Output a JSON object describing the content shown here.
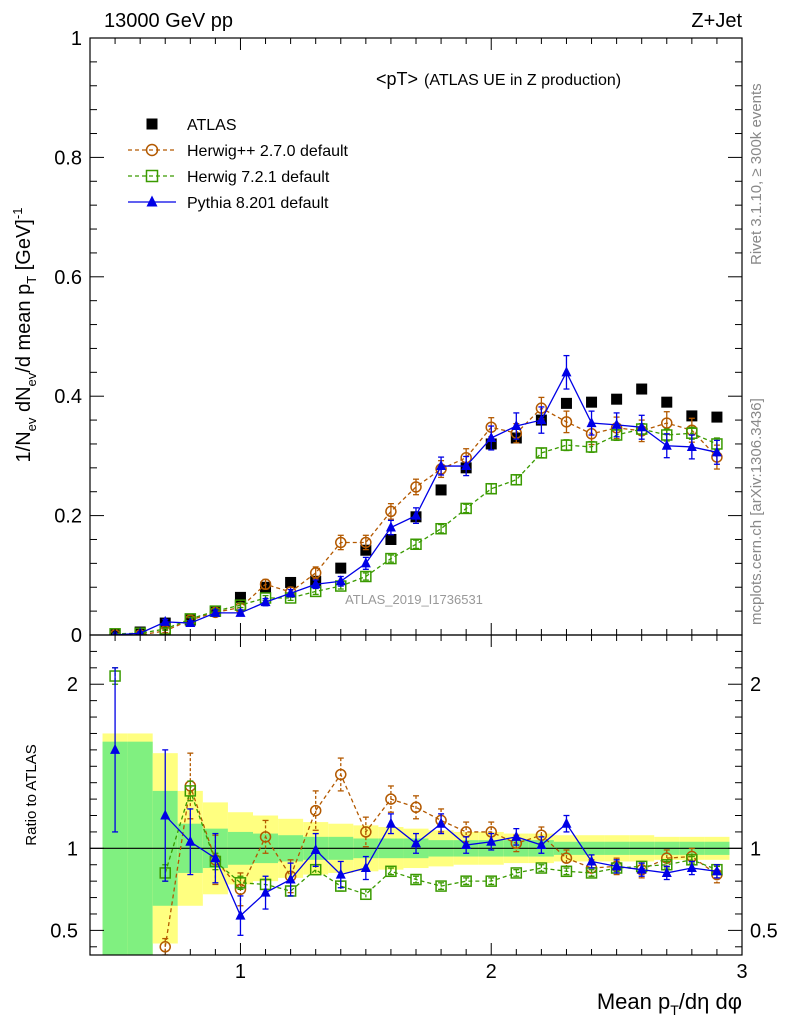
{
  "header": {
    "left": "13000 GeV pp",
    "right": "Z+Jet"
  },
  "side_labels": {
    "rivet": "Rivet 3.1.10, ≥ 300k events",
    "mcplots": "mcplots.cern.ch [arXiv:1306.3436]"
  },
  "chart_data": {
    "type": "scatter",
    "title": "<pT> (ATLAS UE in Z production)",
    "title_main": "<pT>",
    "title_sub": "(ATLAS UE in Z production)",
    "watermark": "ATLAS_2019_I1736531",
    "xlabel": "Mean p_T/dη dφ",
    "ylabel_main": "1/N_ev dN_ev/d mean p_T [GeV]^-1",
    "ylabel_ratio": "Ratio to ATLAS",
    "xlim": [
      0.4,
      3.0
    ],
    "ylim_main": [
      0,
      1
    ],
    "ylim_ratio": [
      0.35,
      2.3
    ],
    "x_ticks": [
      "1",
      "2",
      "3"
    ],
    "y_ticks_main": [
      "0",
      "0.2",
      "0.4",
      "0.6",
      "0.8",
      "1"
    ],
    "y_ticks_ratio": [
      "0.5",
      "1",
      "2"
    ],
    "legend_position": "top-left",
    "x": [
      0.5,
      0.6,
      0.7,
      0.8,
      0.9,
      1.0,
      1.1,
      1.2,
      1.3,
      1.4,
      1.5,
      1.6,
      1.7,
      1.8,
      1.9,
      2.0,
      2.1,
      2.2,
      2.3,
      2.4,
      2.5,
      2.6,
      2.7,
      2.8,
      2.9
    ],
    "series": [
      {
        "name": "ATLAS",
        "color": "#000000",
        "marker": "square-filled",
        "values": [
          0.0,
          0.005,
          0.02,
          0.025,
          0.04,
          0.063,
          0.08,
          0.088,
          0.09,
          0.112,
          0.142,
          0.16,
          0.198,
          0.243,
          0.28,
          0.32,
          0.33,
          0.36,
          0.388,
          0.39,
          0.395,
          0.412,
          0.39,
          0.367,
          0.365
        ],
        "ratio": [],
        "ratio_err": []
      },
      {
        "name": "Herwig++ 2.7.0 default",
        "color": "#b35900",
        "marker": "circle-open",
        "dashed": true,
        "values": [
          0.0,
          0.0,
          0.007,
          0.025,
          0.038,
          0.046,
          0.085,
          0.072,
          0.104,
          0.155,
          0.155,
          0.207,
          0.248,
          0.278,
          0.297,
          0.348,
          0.338,
          0.38,
          0.357,
          0.337,
          0.347,
          0.342,
          0.355,
          0.343,
          0.298
        ],
        "errors": [
          0,
          0,
          0.003,
          0.004,
          0.005,
          0.006,
          0.008,
          0.008,
          0.01,
          0.012,
          0.012,
          0.013,
          0.013,
          0.014,
          0.015,
          0.016,
          0.016,
          0.018,
          0.018,
          0.018,
          0.018,
          0.018,
          0.019,
          0.02,
          0.02
        ],
        "ratio": [
          null,
          null,
          0.4,
          1.38,
          0.93,
          0.75,
          1.07,
          0.83,
          1.23,
          1.45,
          1.1,
          1.3,
          1.25,
          1.17,
          1.1,
          1.1,
          1.03,
          1.08,
          0.94,
          0.88,
          0.89,
          0.87,
          0.94,
          0.95,
          0.84
        ],
        "ratio_err": [
          0,
          0,
          0.05,
          0.2,
          0.15,
          0.1,
          0.1,
          0.1,
          0.12,
          0.1,
          0.09,
          0.08,
          0.07,
          0.07,
          0.06,
          0.06,
          0.05,
          0.05,
          0.05,
          0.05,
          0.05,
          0.05,
          0.05,
          0.05,
          0.05
        ]
      },
      {
        "name": "Herwig 7.2.1 default",
        "color": "#3a9a00",
        "marker": "square-open",
        "dashed": true,
        "values": [
          0.002,
          0.003,
          0.01,
          0.027,
          0.04,
          0.05,
          0.062,
          0.062,
          0.073,
          0.082,
          0.098,
          0.128,
          0.152,
          0.178,
          0.212,
          0.245,
          0.26,
          0.305,
          0.318,
          0.315,
          0.335,
          0.345,
          0.335,
          0.338,
          0.32
        ],
        "errors": [
          0.001,
          0.001,
          0.002,
          0.003,
          0.004,
          0.004,
          0.004,
          0.004,
          0.005,
          0.005,
          0.006,
          0.006,
          0.007,
          0.007,
          0.007,
          0.008,
          0.008,
          0.008,
          0.009,
          0.009,
          0.009,
          0.009,
          0.01,
          0.01,
          0.01
        ],
        "ratio": [
          2.05,
          null,
          0.85,
          1.35,
          0.92,
          0.79,
          0.78,
          0.74,
          0.87,
          0.77,
          0.72,
          0.86,
          0.81,
          0.77,
          0.8,
          0.8,
          0.85,
          0.88,
          0.86,
          0.85,
          0.88,
          0.89,
          0.9,
          0.93,
          0.87
        ],
        "ratio_err": [
          0.05,
          0,
          0.05,
          0.06,
          0.05,
          0.04,
          0.03,
          0.03,
          0.03,
          0.03,
          0.03,
          0.02,
          0.02,
          0.02,
          0.02,
          0.02,
          0.02,
          0.02,
          0.02,
          0.02,
          0.02,
          0.02,
          0.02,
          0.02,
          0.02
        ]
      },
      {
        "name": "Pythia 8.201 default",
        "color": "#0000e6",
        "marker": "triangle-filled",
        "dashed": false,
        "values": [
          0.0,
          0.003,
          0.022,
          0.02,
          0.037,
          0.037,
          0.055,
          0.07,
          0.085,
          0.09,
          0.12,
          0.18,
          0.2,
          0.283,
          0.283,
          0.33,
          0.35,
          0.36,
          0.44,
          0.355,
          0.352,
          0.348,
          0.317,
          0.315,
          0.306
        ],
        "errors": [
          0.001,
          0.002,
          0.004,
          0.004,
          0.005,
          0.005,
          0.006,
          0.006,
          0.007,
          0.008,
          0.01,
          0.012,
          0.013,
          0.015,
          0.016,
          0.02,
          0.022,
          0.022,
          0.028,
          0.02,
          0.02,
          0.02,
          0.02,
          0.02,
          0.02
        ],
        "ratio": [
          1.6,
          null,
          1.2,
          1.04,
          0.94,
          0.59,
          0.73,
          0.81,
          0.99,
          0.84,
          0.88,
          1.15,
          1.03,
          1.15,
          1.02,
          1.04,
          1.07,
          1.02,
          1.15,
          0.92,
          0.89,
          0.87,
          0.85,
          0.88,
          0.86
        ],
        "ratio_err": [
          0.5,
          0,
          0.4,
          0.2,
          0.15,
          0.12,
          0.1,
          0.1,
          0.1,
          0.08,
          0.07,
          0.06,
          0.06,
          0.06,
          0.05,
          0.05,
          0.05,
          0.05,
          0.05,
          0.04,
          0.04,
          0.04,
          0.04,
          0.04,
          0.04
        ]
      }
    ],
    "ratio_bands": {
      "yellow_half_width": [
        0.7,
        0.7,
        0.58,
        0.35,
        0.28,
        0.22,
        0.2,
        0.18,
        0.16,
        0.15,
        0.14,
        0.13,
        0.12,
        0.11,
        0.1,
        0.1,
        0.09,
        0.09,
        0.08,
        0.08,
        0.08,
        0.08,
        0.07,
        0.07,
        0.07
      ],
      "green_half_width": [
        0.65,
        0.65,
        0.35,
        0.15,
        0.12,
        0.1,
        0.09,
        0.08,
        0.07,
        0.07,
        0.06,
        0.06,
        0.06,
        0.05,
        0.05,
        0.05,
        0.05,
        0.05,
        0.04,
        0.04,
        0.04,
        0.04,
        0.04,
        0.04,
        0.04
      ],
      "yellow_color": "#ffff80",
      "green_color": "#80f080"
    }
  }
}
